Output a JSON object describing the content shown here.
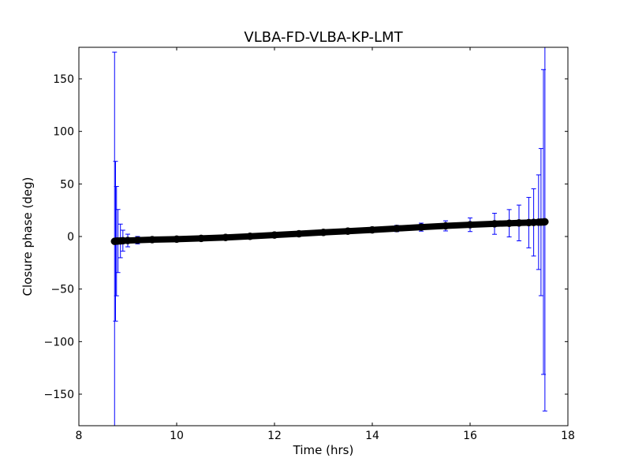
{
  "chart_data": {
    "type": "scatter",
    "title": "VLBA-FD-VLBA-KP-LMT",
    "xlabel": "Time (hrs)",
    "ylabel": "Closure phase (deg)",
    "xlim": [
      8,
      18
    ],
    "ylim": [
      -180,
      180
    ],
    "xticks": [
      8,
      10,
      12,
      14,
      16,
      18
    ],
    "yticks": [
      -150,
      -100,
      -50,
      0,
      50,
      100,
      150
    ],
    "xtick_labels": [
      "8",
      "10",
      "12",
      "14",
      "16",
      "18"
    ],
    "ytick_labels": [
      "−150",
      "−100",
      "−50",
      "0",
      "50",
      "100",
      "150"
    ],
    "grid": false,
    "series": [
      {
        "marker": "circle",
        "color": "#000000",
        "errorbar_color": "#0000ff",
        "x": [
          8.73,
          8.75,
          8.77,
          8.8,
          8.85,
          8.9,
          9.0,
          9.2,
          9.5,
          10.0,
          10.5,
          11.0,
          11.5,
          12.0,
          12.5,
          13.0,
          13.5,
          14.0,
          14.5,
          15.0,
          15.5,
          16.0,
          16.5,
          16.8,
          17.0,
          17.2,
          17.3,
          17.4,
          17.45,
          17.5,
          17.53
        ],
        "y": [
          -4.6,
          -4.5,
          -4.4,
          -4.3,
          -4.2,
          -4.0,
          -3.8,
          -3.5,
          -3.0,
          -2.5,
          -1.8,
          -0.9,
          0.2,
          1.4,
          2.6,
          3.9,
          5.1,
          6.3,
          7.6,
          8.9,
          10.1,
          11.2,
          12.1,
          12.6,
          12.9,
          13.2,
          13.4,
          13.6,
          13.7,
          13.8,
          14.0
        ],
        "yerr": [
          180,
          76,
          52,
          30,
          16,
          10,
          6,
          3.5,
          2.2,
          1.5,
          1.2,
          1.1,
          1.1,
          1.2,
          1.4,
          1.7,
          2.0,
          2.5,
          3.0,
          3.8,
          4.8,
          6.5,
          10,
          13,
          17,
          24,
          32,
          45,
          70,
          145,
          180
        ]
      }
    ]
  }
}
